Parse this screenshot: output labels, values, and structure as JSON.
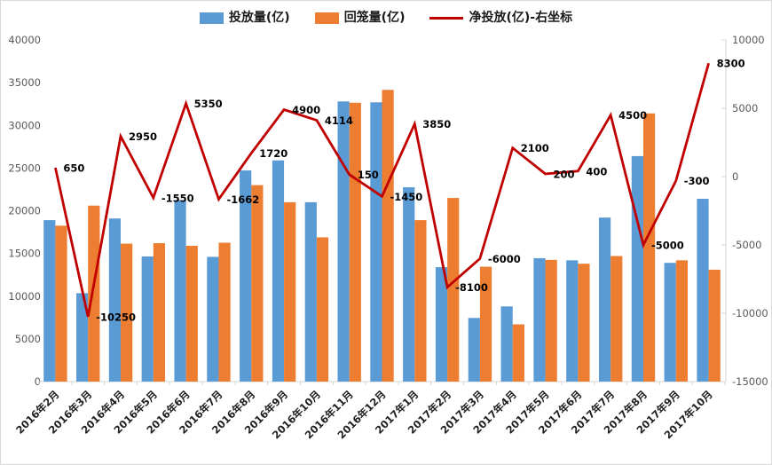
{
  "legend": {
    "items": [
      {
        "label": "投放量(亿)",
        "type": "bar",
        "color": "#5B9BD5"
      },
      {
        "label": "回笼量(亿)",
        "type": "bar",
        "color": "#ED7D31"
      },
      {
        "label": "净投放(亿)-右坐标",
        "type": "line",
        "color": "#C00000"
      }
    ]
  },
  "colors": {
    "injection_bar": "#5B9BD5",
    "withdrawal_bar": "#ED7D31",
    "net_line": "#C00000",
    "axis": "#d6d6d6",
    "tick_label": "#595959",
    "data_label": "#000000",
    "background": "#ffffff"
  },
  "chart_data": {
    "type": "combo-bar-line",
    "title": "",
    "xlabel": "",
    "ylabel": "",
    "grid": false,
    "legend_position": "top",
    "categories": [
      "2016年2月",
      "2016年3月",
      "2016年4月",
      "2016年5月",
      "2016年6月",
      "2016年7月",
      "2016年8月",
      "2016年9月",
      "2016年10月",
      "2016年11月",
      "2016年12月",
      "2017年1月",
      "2017年2月",
      "2017年3月",
      "2017年4月",
      "2017年5月",
      "2017年6月",
      "2017年7月",
      "2017年8月",
      "2017年9月",
      "2017年10月"
    ],
    "series": [
      {
        "name": "投放量(亿)",
        "type": "bar",
        "axis": "left",
        "color": "#5B9BD5",
        "values": [
          18900,
          10350,
          19100,
          14650,
          21250,
          14600,
          24720,
          25900,
          21000,
          32800,
          32700,
          22750,
          13400,
          7450,
          8800,
          14450,
          14200,
          19200,
          26400,
          13900,
          21400
        ]
      },
      {
        "name": "回笼量(亿)",
        "type": "bar",
        "axis": "left",
        "color": "#ED7D31",
        "values": [
          18250,
          20600,
          16150,
          16200,
          15900,
          16262,
          23000,
          21000,
          16886,
          32650,
          34150,
          18900,
          21500,
          13450,
          6700,
          14250,
          13800,
          14700,
          31400,
          14200,
          13100
        ]
      },
      {
        "name": "净投放(亿)-右坐标",
        "type": "line",
        "axis": "right",
        "color": "#C00000",
        "values": [
          650,
          -10250,
          2950,
          -1550,
          5350,
          -1662,
          1720,
          4900,
          4114,
          150,
          -1450,
          3850,
          -8100,
          -6000,
          2100,
          200,
          400,
          4500,
          -5000,
          -300,
          8300
        ],
        "labels": [
          "650",
          "-10250",
          "2950",
          "-1550",
          "5350",
          "-1662",
          "1720",
          "4900",
          "4114",
          "150",
          "-1450",
          "3850",
          "-8100",
          "-6000",
          "2100",
          "200",
          "400",
          "4500",
          "-5000",
          "-300",
          "8300"
        ]
      }
    ],
    "left_axis": {
      "min": 0,
      "max": 40000,
      "ticks": [
        0,
        5000,
        10000,
        15000,
        20000,
        25000,
        30000,
        35000,
        40000
      ]
    },
    "right_axis": {
      "min": -15000,
      "max": 10000,
      "ticks": [
        -15000,
        -10000,
        -5000,
        0,
        5000,
        10000
      ]
    }
  }
}
